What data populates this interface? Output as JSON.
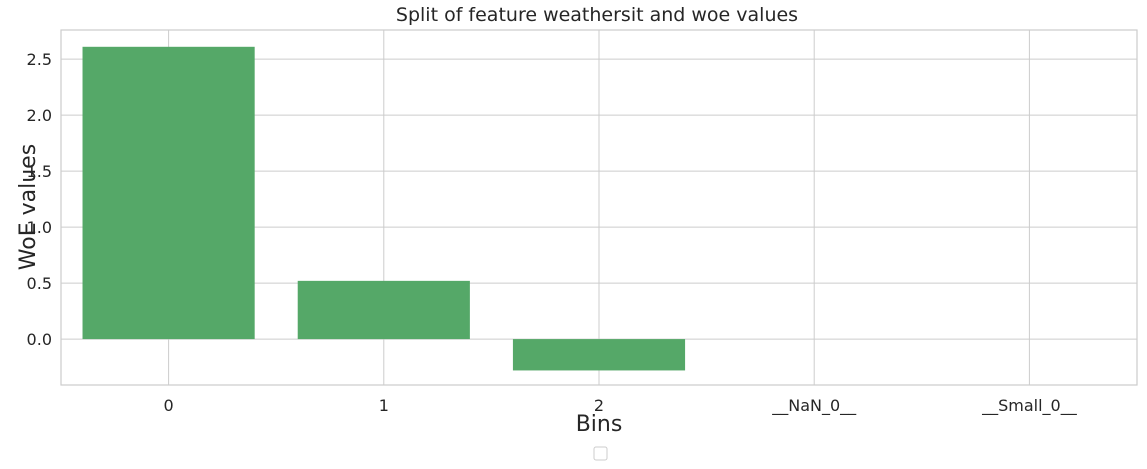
{
  "chart_data": {
    "type": "bar",
    "title": "Split of feature weathersit and woe values",
    "xlabel": "Bins",
    "ylabel": "WoE values",
    "categories": [
      "0",
      "1",
      "2",
      "__NaN_0__",
      "__Small_0__"
    ],
    "values": [
      2.61,
      0.52,
      -0.28,
      0,
      0
    ],
    "ylim": [
      -0.41,
      2.76
    ],
    "yticks": [
      0.0,
      0.5,
      1.0,
      1.5,
      2.0,
      2.5
    ],
    "ytick_labels": [
      "0.0",
      "0.5",
      "1.0",
      "1.5",
      "2.0",
      "2.5"
    ],
    "grid": true,
    "legend": "bottom-center, empty",
    "colors": {
      "bar": "#55a868"
    }
  }
}
